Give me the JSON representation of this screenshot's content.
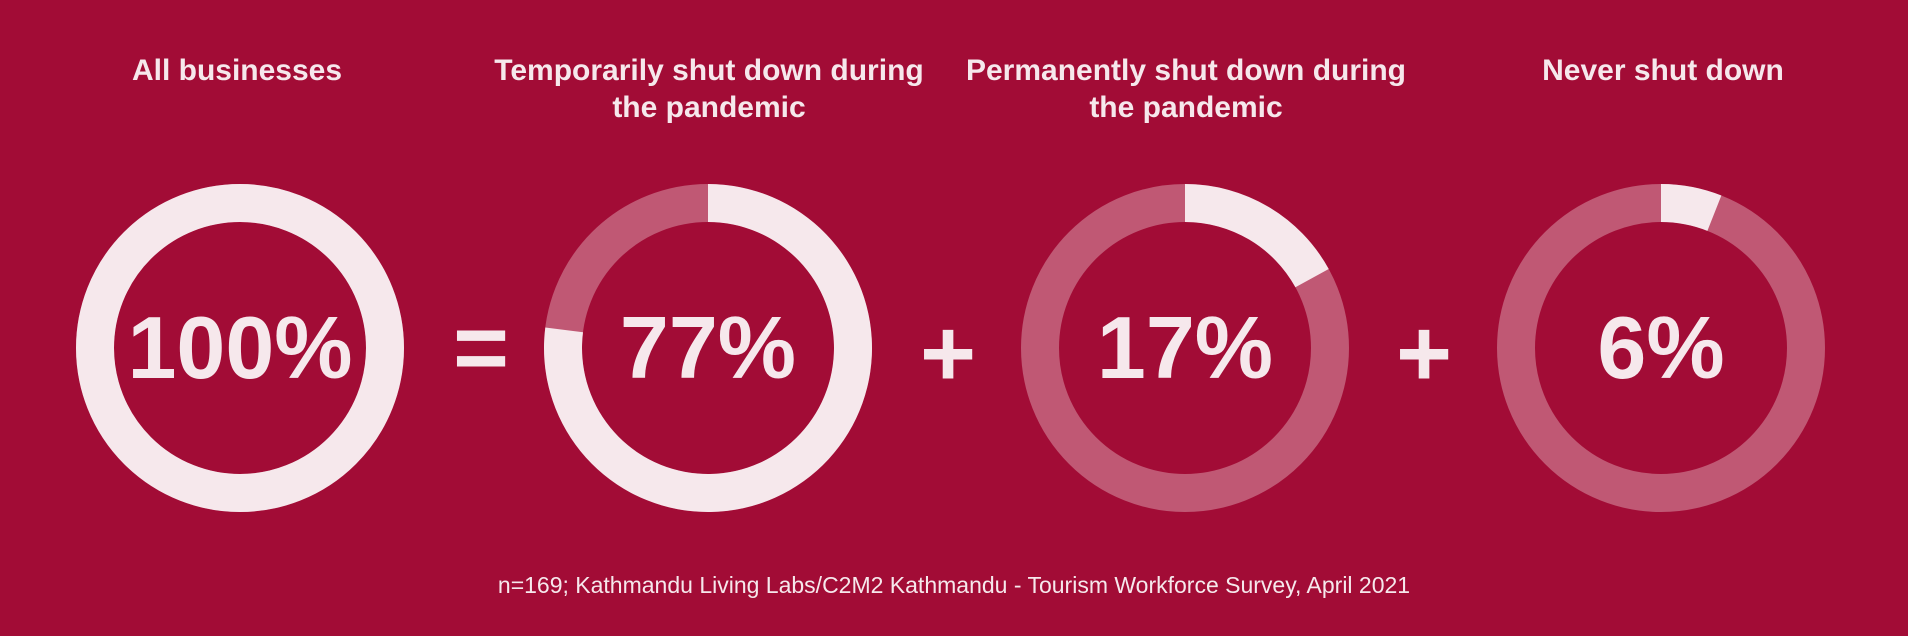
{
  "colors": {
    "background": "#a20c36",
    "filled": "#f6e8ec",
    "track": "#c05874",
    "text": "#f6e8ec"
  },
  "chart_data": [
    {
      "type": "pie",
      "title": "All businesses",
      "label": "100%",
      "values": [
        100
      ]
    },
    {
      "type": "pie",
      "title": "Temporarily shut down during\nthe pandemic",
      "label": "77%",
      "values": [
        77
      ]
    },
    {
      "type": "pie",
      "title": "Permanently shut down during\nthe pandemic",
      "label": "17%",
      "values": [
        17
      ]
    },
    {
      "type": "pie",
      "title": "Never shut down",
      "label": "6%",
      "values": [
        6
      ]
    }
  ],
  "operators": [
    "=",
    "+",
    "+"
  ],
  "source": "n=169; Kathmandu Living Labs/C2M2 Kathmandu - Tourism Workforce Survey, April 2021"
}
